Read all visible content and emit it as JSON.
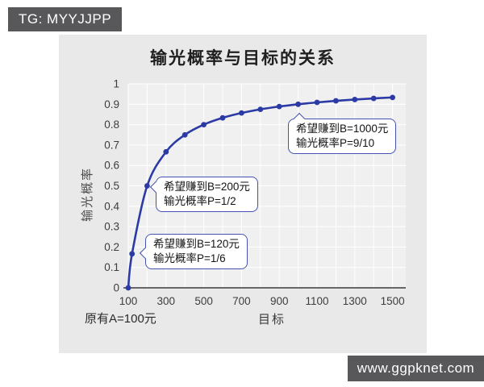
{
  "page": {
    "tg_badge": "TG: MYYJJPP",
    "watermark": "www.ggpknet.com"
  },
  "chart": {
    "title": "输光概率与目标的关系",
    "x_axis_label": "目标",
    "y_axis_label": "输光概率",
    "initial_note": "原有A=100元"
  },
  "colors": {
    "line": "#2b3aa5",
    "callout_border": "#4353b4",
    "panel_bg": "#e9e9e9",
    "plot_bg": "#f0f0f0",
    "gridline": "#ffffff",
    "axis": "#3a3a3a",
    "badge_bg": "#58585a"
  },
  "chart_data": {
    "type": "line",
    "title": "输光概率与目标的关系",
    "xlabel": "目标",
    "ylabel": "输光概率",
    "series": [
      {
        "name": "输光概率",
        "x": [
          100,
          120,
          200,
          300,
          400,
          500,
          600,
          700,
          800,
          900,
          1000,
          1100,
          1200,
          1300,
          1400,
          1500
        ],
        "y": [
          0,
          0.1667,
          0.5,
          0.6667,
          0.75,
          0.8,
          0.8333,
          0.8571,
          0.875,
          0.8889,
          0.9,
          0.9091,
          0.9167,
          0.9231,
          0.9286,
          0.9333
        ]
      }
    ],
    "xlim": [
      100,
      1570
    ],
    "ylim": [
      0,
      1
    ],
    "x_ticks": [
      "100",
      "300",
      "500",
      "700",
      "900",
      "1100",
      "1300",
      "1500"
    ],
    "y_ticks": [
      "0",
      "0.1",
      "0.2",
      "0.3",
      "0.4",
      "0.5",
      "0.6",
      "0.7",
      "0.8",
      "0.9",
      "1"
    ],
    "grid": true,
    "legend": false,
    "annotations": [
      {
        "line1": "希望赚到B=120元",
        "line2": "输光概率P=1/6",
        "target_x": 120,
        "target_y": 0.1667
      },
      {
        "line1": "希望赚到B=200元",
        "line2": "输光概率P=1/2",
        "target_x": 200,
        "target_y": 0.5
      },
      {
        "line1": "希望赚到B=1000元",
        "line2": "输光概率P=9/10",
        "target_x": 1000,
        "target_y": 0.9
      }
    ]
  }
}
